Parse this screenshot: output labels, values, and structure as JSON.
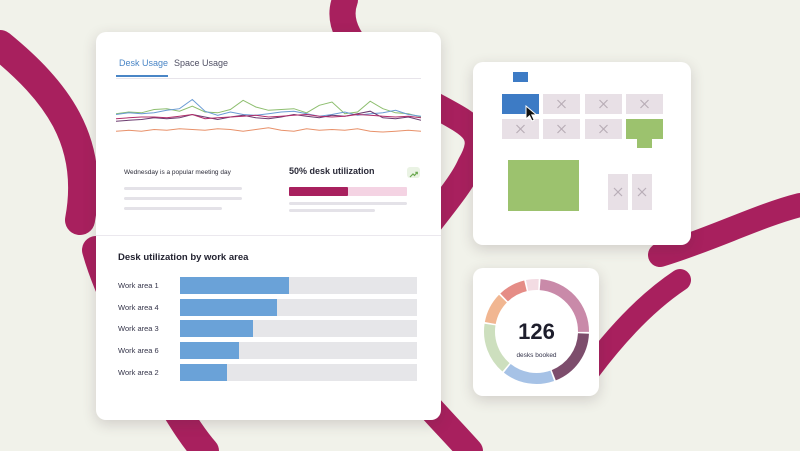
{
  "colors": {
    "background": "#f1f2ea",
    "accent_stroke": "#a8205e",
    "tab_active": "#4a86c6",
    "bar_blue": "#6aa2d8",
    "desk_booked_blue": "#3d7bc5",
    "desk_green": "#9cc26e",
    "desk_empty": "#e8e0e6"
  },
  "tabs": [
    {
      "label": "Desk Usage",
      "active": true
    },
    {
      "label": "Space Usage",
      "active": false
    }
  ],
  "line_chart": {
    "series": [
      {
        "color": "#8dbe6e",
        "values": [
          3.4,
          3.6,
          3.5,
          3.9,
          4.0,
          3.7,
          4.3,
          3.6,
          3.5,
          3.9,
          5.0,
          4.2,
          3.8,
          3.9,
          4.0,
          3.5,
          4.4,
          4.8,
          3.4,
          3.6,
          4.9,
          4.0,
          3.5,
          3.4,
          3.0
        ]
      },
      {
        "color": "#6a9bd4",
        "values": [
          3.3,
          3.5,
          3.4,
          3.5,
          3.8,
          4.0,
          5.1,
          3.7,
          3.2,
          3.6,
          3.3,
          3.2,
          3.4,
          3.6,
          3.7,
          3.4,
          3.1,
          3.3,
          3.6,
          3.2,
          3.4,
          3.5,
          3.8,
          3.3,
          3.1
        ]
      },
      {
        "color": "#6b3b6f",
        "values": [
          2.5,
          2.6,
          2.7,
          2.9,
          2.8,
          2.9,
          3.3,
          3.0,
          2.7,
          3.0,
          3.2,
          2.9,
          2.8,
          3.0,
          3.3,
          3.1,
          2.9,
          3.2,
          3.1,
          3.4,
          3.7,
          2.9,
          2.8,
          3.0,
          2.6
        ]
      },
      {
        "color": "#b12d6a",
        "values": [
          2.8,
          2.9,
          3.0,
          3.0,
          2.9,
          3.1,
          3.3,
          2.8,
          2.9,
          3.0,
          3.1,
          3.2,
          3.0,
          3.1,
          3.2,
          3.3,
          3.1,
          3.0,
          3.1,
          3.3,
          3.2,
          3.1,
          3.0,
          3.1,
          2.9
        ]
      },
      {
        "color": "#e8916a",
        "values": [
          1.3,
          1.4,
          1.3,
          1.5,
          1.4,
          1.6,
          1.5,
          1.4,
          1.6,
          1.5,
          1.3,
          1.5,
          1.7,
          1.4,
          1.3,
          1.6,
          1.4,
          1.5,
          1.4,
          1.6,
          1.3,
          1.2,
          1.3,
          1.4,
          1.3
        ]
      }
    ],
    "y_range": [
      0,
      6
    ]
  },
  "insight": {
    "text": "Wednesday is a popular meeting day"
  },
  "utilization": {
    "title": "50% desk utilization",
    "value": 0.5
  },
  "work_areas": {
    "title": "Desk utilization by work area",
    "rows": [
      {
        "label": "Work area 1",
        "value": 0.46
      },
      {
        "label": "Work area 4",
        "value": 0.41
      },
      {
        "label": "Work area 3",
        "value": 0.31
      },
      {
        "label": "Work area 6",
        "value": 0.25
      },
      {
        "label": "Work area 2",
        "value": 0.2
      }
    ]
  },
  "floor_plan": {
    "icons": [
      "x-mark-icon",
      "cursor-arrow-icon"
    ]
  },
  "donut": {
    "number": "126",
    "caption": "desks booked",
    "segments": [
      {
        "color": "#c98aa9",
        "value": 22
      },
      {
        "color": "#7d4d6c",
        "value": 17
      },
      {
        "color": "#a6c2e6",
        "value": 15
      },
      {
        "color": "#cddfbe",
        "value": 15
      },
      {
        "color": "#f1b691",
        "value": 9
      },
      {
        "color": "#e58c86",
        "value": 8
      },
      {
        "color": "#f3dce3",
        "value": 4
      }
    ]
  }
}
